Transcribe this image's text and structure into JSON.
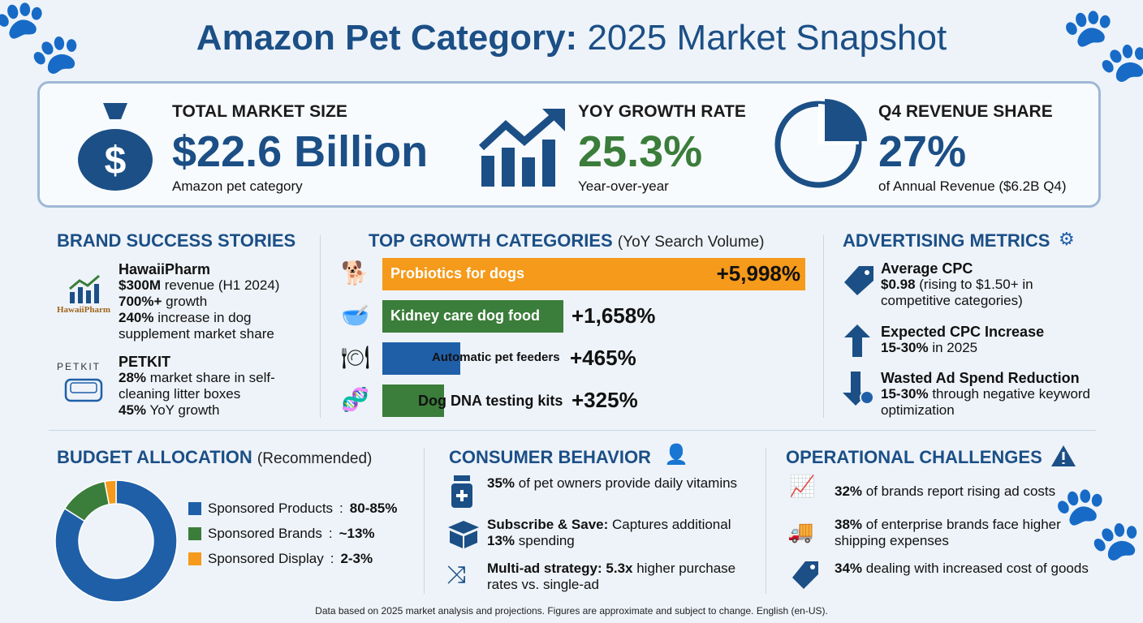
{
  "title": {
    "bold": "Amazon Pet Category:",
    "regular": "2025 Market Snapshot"
  },
  "kpis": [
    {
      "label": "TOTAL MARKET SIZE",
      "value": "$22.6 Billion",
      "sub": "Amazon pet category",
      "color": "#1b4f86",
      "icon": "money-bag-icon"
    },
    {
      "label": "YOY GROWTH RATE",
      "value": "25.3%",
      "sub": "Year-over-year",
      "color": "#3b7d3a",
      "icon": "growth-chart-icon"
    },
    {
      "label": "Q4 REVENUE SHARE",
      "value": "27%",
      "sub": "of Annual Revenue ($6.2B Q4)",
      "color": "#1b4f86",
      "icon": "pie-chart-icon"
    }
  ],
  "brands": {
    "title": "BRAND SUCCESS STORIES",
    "items": [
      {
        "name": "HawaiiPharm",
        "logo": "HawaiiPharm",
        "lines": [
          [
            "$300M",
            " revenue (H1 2024)"
          ],
          [
            "700%+",
            " growth"
          ],
          [
            "240%",
            " increase in dog supplement market share"
          ]
        ]
      },
      {
        "name": "PETKIT",
        "logo": "PETKIT",
        "lines": [
          [
            "28%",
            " market share in self-cleaning litter boxes"
          ],
          [
            "45%",
            " YoY growth"
          ]
        ]
      }
    ]
  },
  "growth": {
    "title": "TOP GROWTH CATEGORIES",
    "subtitle": "(YoY Search Volume)"
  },
  "chart_data": [
    {
      "type": "bar",
      "title": "TOP GROWTH CATEGORIES (YoY Search Volume)",
      "categories": [
        "Probiotics for dogs",
        "Kidney care dog food",
        "Automatic pet feeders",
        "Dog DNA testing kits"
      ],
      "values": [
        5998,
        1658,
        465,
        325
      ],
      "labels": [
        "+5,998%",
        "+1,658%",
        "+465%",
        "+325%"
      ],
      "colors": [
        "#f59a1a",
        "#3b7d3a",
        "#1f5fa8",
        "#3b7d3a"
      ],
      "icons": [
        "dog-icon",
        "pet-bowl-icon",
        "pet-feeder-icon",
        "dna-icon"
      ]
    },
    {
      "type": "pie",
      "title": "BUDGET ALLOCATION (Recommended)",
      "categories": [
        "Sponsored Products",
        "Sponsored Brands",
        "Sponsored Display"
      ],
      "labels": [
        "80-85%",
        "~13%",
        "2-3%"
      ],
      "values": [
        84,
        13,
        3
      ],
      "colors": [
        "#1f5fa8",
        "#3b7d3a",
        "#f59a1a"
      ]
    }
  ],
  "ads": {
    "title": "ADVERTISING METRICS",
    "items": [
      {
        "head": "Average CPC",
        "bold": "$0.98",
        "rest": " (rising to $1.50+ in competitive categories)",
        "icon": "price-tag-icon"
      },
      {
        "head": "Expected CPC Increase",
        "bold": "15-30%",
        "rest": " in 2025",
        "icon": "arrow-up-icon"
      },
      {
        "head": "Wasted Ad Spend Reduction",
        "bold": "15-30%",
        "rest": " through negative keyword optimization",
        "icon": "arrow-down-gear-icon"
      }
    ]
  },
  "budget": {
    "title": "BUDGET ALLOCATION",
    "subtitle": "(Recommended)"
  },
  "consumer": {
    "title": "CONSUMER BEHAVIOR",
    "items": [
      {
        "bold": "35%",
        "rest": " of pet owners provide daily vitamins"
      },
      {
        "bold": "Subscribe & Save:",
        "rest": " Captures additional ",
        "bold2": "13%",
        "rest2": " spending"
      },
      {
        "bold": "Multi-ad strategy: 5.3x",
        "rest": " higher purchase rates vs. single-ad"
      }
    ]
  },
  "ops": {
    "title": "OPERATIONAL CHALLENGES",
    "items": [
      {
        "bold": "32%",
        "rest": " of brands report rising ad costs"
      },
      {
        "bold": "38%",
        "rest": " of enterprise brands face higher shipping expenses"
      },
      {
        "bold": "34%",
        "rest": " dealing with increased cost of goods"
      }
    ]
  },
  "footer": "Data based on 2025 market analysis and projections. Figures are approximate and subject to change. English (en-US)."
}
